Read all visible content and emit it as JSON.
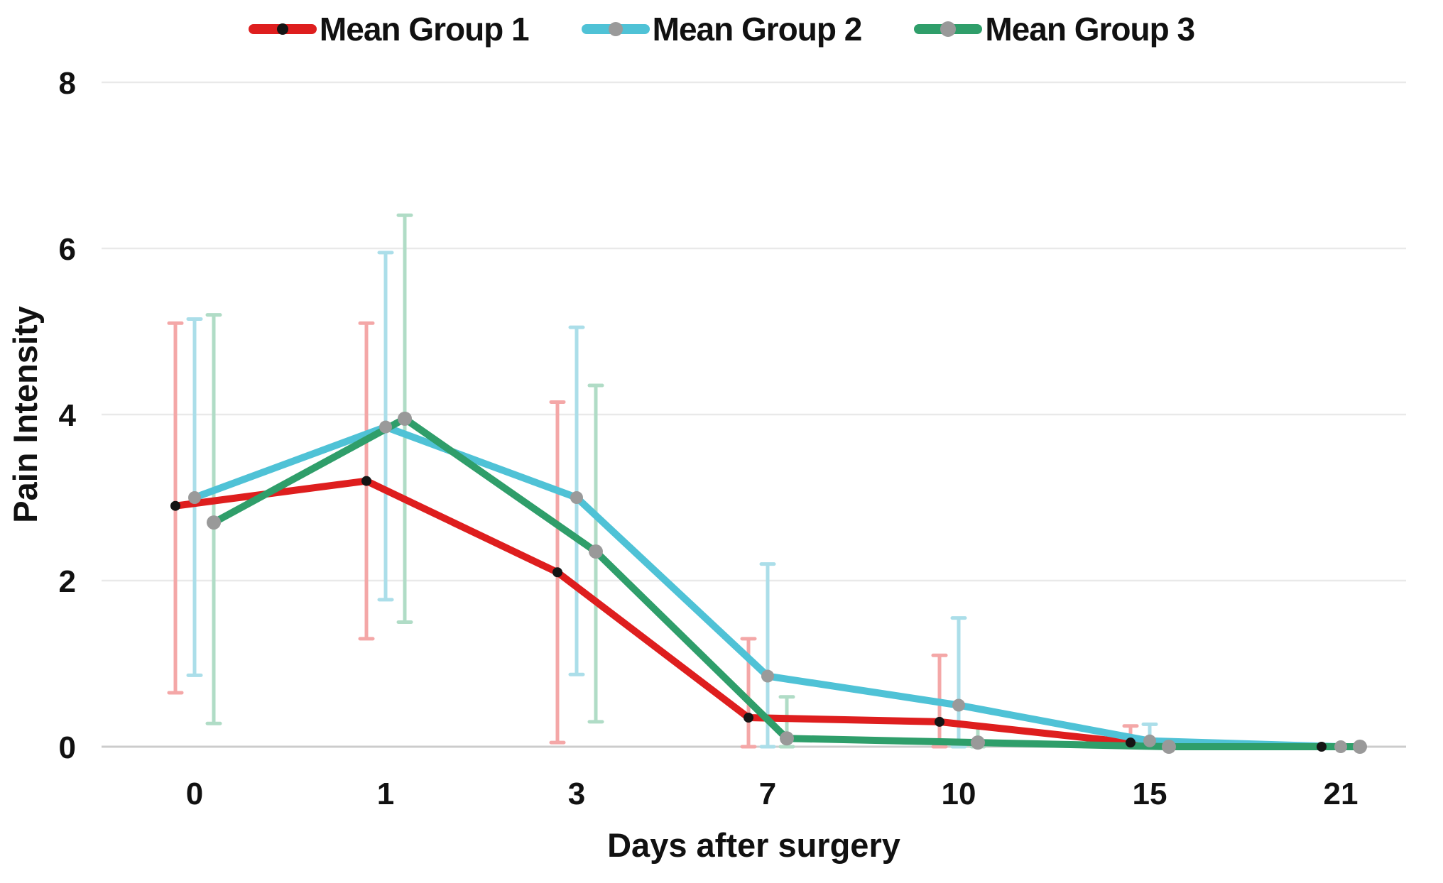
{
  "chart_data": {
    "type": "line",
    "title": "",
    "xlabel": "Days after surgery",
    "ylabel": "Pain Intensity",
    "categories": [
      0,
      1,
      3,
      7,
      10,
      15,
      21
    ],
    "ylim": [
      0,
      8
    ],
    "y_ticks": [
      0,
      2,
      4,
      6,
      8
    ],
    "grid": "horizontal",
    "legend_position": "top",
    "colors": {
      "background": "#ffffff",
      "gridline": "#e9e9e9",
      "zero_gridline": "#cccccc",
      "text": "#111111"
    },
    "series": [
      {
        "name": "Mean Group 1",
        "color": "#de1e1e",
        "marker_color": "#151515",
        "error_color": "#f4a7a7",
        "values": [
          2.9,
          3.2,
          2.1,
          0.35,
          0.3,
          0.05,
          0
        ],
        "error_upper_abs": [
          5.1,
          5.1,
          4.15,
          1.3,
          1.1,
          0.25,
          null
        ],
        "error_lower_abs": [
          0.65,
          1.3,
          0.05,
          0,
          0,
          0,
          null
        ]
      },
      {
        "name": "Mean Group 2",
        "color": "#4fc2d6",
        "marker_color": "#9a9a9a",
        "error_color": "#abdee9",
        "values": [
          3.0,
          3.85,
          3.0,
          0.85,
          0.5,
          0.07,
          0
        ],
        "error_upper_abs": [
          5.15,
          5.95,
          5.05,
          2.2,
          1.55,
          0.27,
          null
        ],
        "error_lower_abs": [
          0.86,
          1.77,
          0.87,
          0,
          0,
          0,
          null
        ]
      },
      {
        "name": "Mean Group 3",
        "color": "#2f9e6a",
        "marker_color": "#999999",
        "error_color": "#b0dcc6",
        "values": [
          2.7,
          3.95,
          2.35,
          0.1,
          0.05,
          0,
          0
        ],
        "error_upper_abs": [
          5.2,
          6.4,
          4.35,
          0.6,
          0.25,
          null,
          null
        ],
        "error_lower_abs": [
          0.28,
          1.5,
          0.3,
          0,
          0,
          null,
          null
        ]
      }
    ]
  }
}
